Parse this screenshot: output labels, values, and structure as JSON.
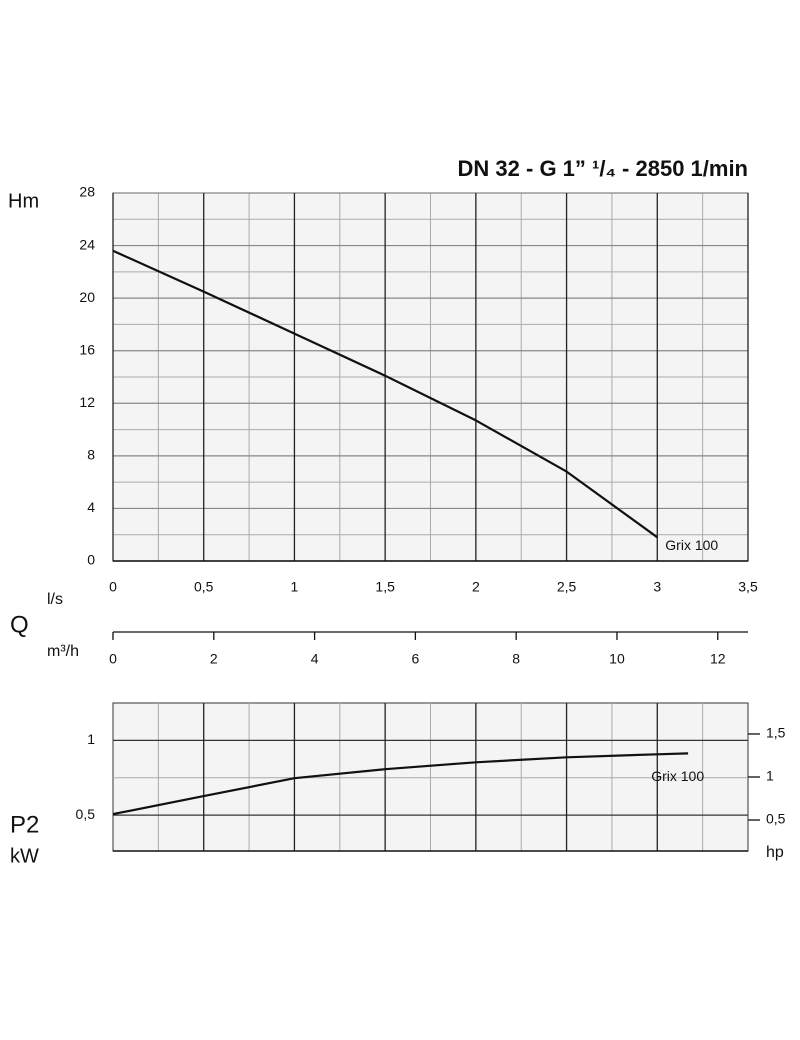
{
  "title": "DN 32 - G 1” ¹/₄ - 2850 1/min",
  "quantity_label": "Q",
  "chart_data": [
    {
      "type": "line",
      "ylabel": "Hm",
      "xlabel": "l/s",
      "xlim": [
        0,
        3.5
      ],
      "xticks": [
        0,
        {
          "value": 0.5,
          "label": "0,5"
        },
        1,
        {
          "value": 1.5,
          "label": "1,5"
        },
        2,
        {
          "value": 2.5,
          "label": "2,5"
        },
        3,
        {
          "value": 3.5,
          "label": "3,5"
        }
      ],
      "xgrid_minor": [
        0.25,
        0.75,
        1.25,
        1.75,
        2.25,
        2.75,
        3.25
      ],
      "ylim": [
        0,
        28
      ],
      "yticks": [
        0,
        4,
        8,
        12,
        16,
        20,
        24,
        28
      ],
      "ygrid_minor": [
        2,
        6,
        10,
        14,
        18,
        22,
        26
      ],
      "x2label": "m³/h",
      "x2lim": [
        0,
        12.6
      ],
      "x2ticks": [
        0,
        2,
        4,
        6,
        8,
        10,
        12
      ],
      "grid": true,
      "x": [
        0,
        0.5,
        1,
        1.5,
        2,
        2.5,
        3
      ],
      "series": [
        {
          "name": "Grix 100",
          "color": "#111111",
          "values": [
            23.6,
            20.5,
            17.3,
            14.1,
            10.7,
            6.8,
            1.8
          ]
        }
      ]
    },
    {
      "type": "line",
      "ylabel": "P2",
      "yunit": "kW",
      "y2label": "hp",
      "xlim": [
        0,
        3.5
      ],
      "xgrid_major": [
        0.5,
        1,
        1.5,
        2,
        2.5,
        3
      ],
      "xgrid_minor": [
        0.25,
        0.75,
        1.25,
        1.75,
        2.25,
        2.75,
        3.25
      ],
      "ylim": [
        0.26,
        1.25
      ],
      "yticks": [
        {
          "value": 0.5,
          "label": "0,5"
        },
        1
      ],
      "ygrid_minor": [
        0.75
      ],
      "y2lim": [
        0.14,
        1.86
      ],
      "y2ticks": [
        {
          "value": 0.5,
          "label": "0,5"
        },
        1,
        {
          "value": 1.5,
          "label": "1,5"
        }
      ],
      "grid": true,
      "x": [
        0,
        0.5,
        1,
        1.5,
        2,
        2.5,
        3,
        3.17
      ],
      "series": [
        {
          "name": "Grix 100",
          "color": "#111111",
          "values": [
            0.507,
            0.627,
            0.747,
            0.807,
            0.853,
            0.887,
            0.907,
            0.913
          ]
        }
      ]
    }
  ]
}
